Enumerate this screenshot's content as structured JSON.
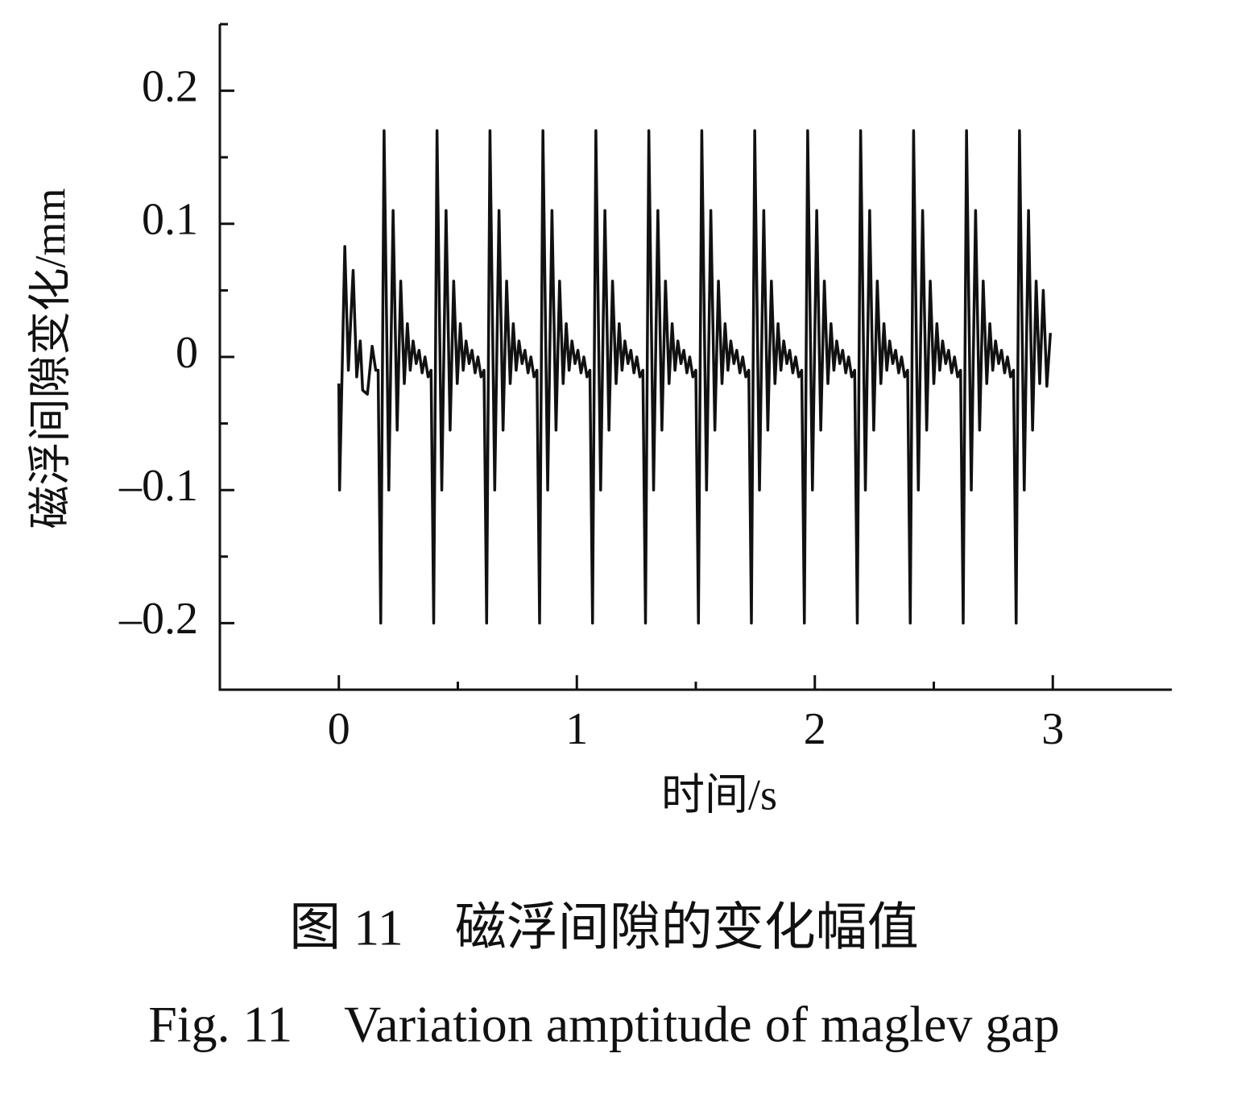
{
  "chart_data": {
    "type": "line",
    "caption_cn": "图 11　磁浮间隙的变化幅值",
    "caption_en": "Fig. 11　Variation amptitude of maglev gap",
    "xlabel": "时间/s",
    "ylabel": "磁浮间隙变化/mm",
    "color": "#111111",
    "xlim": [
      -0.5,
      3.5
    ],
    "ylim": [
      -0.25,
      0.25
    ],
    "xticks": [
      0,
      1,
      2,
      3
    ],
    "xminorticks": [
      0.5,
      1.5,
      2.5
    ],
    "yticks": [
      {
        "value": -0.2,
        "label": "–0.2"
      },
      {
        "value": -0.1,
        "label": "–0.1"
      },
      0,
      0.1,
      0.2
    ],
    "yminorticks": [
      -0.15,
      -0.05,
      0.05,
      0.15,
      0.25
    ],
    "x": [
      0,
      0.003,
      0.025,
      0.04,
      0.06,
      0.075,
      0.09,
      0.1,
      0.12,
      0.14,
      0.155,
      0.165,
      0.176,
      0.19,
      0.21,
      0.228,
      0.245,
      0.26,
      0.275,
      0.288,
      0.3,
      0.312,
      0.325,
      0.337,
      0.35,
      0.362,
      0.375,
      0.3875,
      0.3985,
      0.4125,
      0.4325,
      0.4505,
      0.4675,
      0.4825,
      0.4975,
      0.5105,
      0.5225,
      0.5345,
      0.5475,
      0.5595,
      0.5725,
      0.5845,
      0.5975,
      0.61,
      0.621,
      0.635,
      0.655,
      0.673,
      0.69,
      0.705,
      0.72,
      0.733,
      0.745,
      0.757,
      0.77,
      0.782,
      0.795,
      0.807,
      0.82,
      0.8325,
      0.8435,
      0.8575,
      0.8775,
      0.8955,
      0.9125,
      0.9275,
      0.9425,
      0.9555,
      0.9675,
      0.9795,
      0.9925,
      1.0045,
      1.0175,
      1.0295,
      1.0425,
      1.055,
      1.066,
      1.08,
      1.1,
      1.118,
      1.135,
      1.15,
      1.165,
      1.178,
      1.19,
      1.202,
      1.215,
      1.227,
      1.24,
      1.252,
      1.265,
      1.2775,
      1.2885,
      1.3025,
      1.3225,
      1.3405,
      1.3575,
      1.3725,
      1.3875,
      1.4005,
      1.4125,
      1.4245,
      1.4375,
      1.4495,
      1.4625,
      1.4745,
      1.4875,
      1.5,
      1.511,
      1.525,
      1.545,
      1.563,
      1.58,
      1.595,
      1.61,
      1.623,
      1.635,
      1.647,
      1.66,
      1.672,
      1.685,
      1.697,
      1.71,
      1.7225,
      1.7335,
      1.7475,
      1.7675,
      1.7855,
      1.8025,
      1.8175,
      1.8325,
      1.8455,
      1.8575,
      1.8695,
      1.8825,
      1.8945,
      1.9075,
      1.9195,
      1.9325,
      1.945,
      1.956,
      1.97,
      1.99,
      2.008,
      2.025,
      2.04,
      2.055,
      2.068,
      2.08,
      2.092,
      2.105,
      2.117,
      2.13,
      2.142,
      2.155,
      2.1675,
      2.1785,
      2.1925,
      2.2125,
      2.2305,
      2.2475,
      2.2625,
      2.2775,
      2.2905,
      2.3025,
      2.3145,
      2.3275,
      2.3395,
      2.3525,
      2.3645,
      2.3775,
      2.39,
      2.401,
      2.415,
      2.435,
      2.453,
      2.47,
      2.485,
      2.5,
      2.513,
      2.525,
      2.537,
      2.55,
      2.562,
      2.575,
      2.587,
      2.6,
      2.6125,
      2.6235,
      2.6375,
      2.6575,
      2.6755,
      2.6925,
      2.7075,
      2.7225,
      2.7355,
      2.7475,
      2.7595,
      2.7725,
      2.7845,
      2.7975,
      2.8095,
      2.8225,
      2.835,
      2.846,
      2.86,
      2.88,
      2.898,
      2.915,
      2.93,
      2.945,
      2.96,
      2.975,
      2.99
    ],
    "values": [
      -0.02,
      -0.1,
      0.083,
      -0.01,
      0.065,
      -0.015,
      0.012,
      -0.025,
      -0.028,
      0.008,
      -0.01,
      -0.01,
      -0.2,
      0.17,
      -0.1,
      0.11,
      -0.055,
      0.057,
      -0.02,
      0.025,
      -0.01,
      0.012,
      -0.005,
      0.005,
      -0.012,
      0.0,
      -0.015,
      -0.01,
      -0.2,
      0.17,
      -0.1,
      0.11,
      -0.055,
      0.057,
      -0.02,
      0.025,
      -0.01,
      0.012,
      -0.005,
      0.005,
      -0.012,
      0.0,
      -0.015,
      -0.01,
      -0.2,
      0.17,
      -0.1,
      0.11,
      -0.055,
      0.057,
      -0.02,
      0.025,
      -0.01,
      0.012,
      -0.005,
      0.005,
      -0.012,
      0.0,
      -0.015,
      -0.01,
      -0.2,
      0.17,
      -0.1,
      0.11,
      -0.055,
      0.057,
      -0.02,
      0.025,
      -0.01,
      0.012,
      -0.005,
      0.005,
      -0.012,
      0.0,
      -0.015,
      -0.01,
      -0.2,
      0.17,
      -0.1,
      0.11,
      -0.055,
      0.057,
      -0.02,
      0.025,
      -0.01,
      0.012,
      -0.005,
      0.005,
      -0.012,
      0.0,
      -0.015,
      -0.01,
      -0.2,
      0.17,
      -0.1,
      0.11,
      -0.055,
      0.057,
      -0.02,
      0.025,
      -0.01,
      0.012,
      -0.005,
      0.005,
      -0.012,
      0.0,
      -0.015,
      -0.01,
      -0.2,
      0.17,
      -0.1,
      0.11,
      -0.055,
      0.057,
      -0.02,
      0.025,
      -0.01,
      0.012,
      -0.005,
      0.005,
      -0.012,
      0.0,
      -0.015,
      -0.01,
      -0.2,
      0.17,
      -0.1,
      0.11,
      -0.055,
      0.057,
      -0.02,
      0.025,
      -0.01,
      0.012,
      -0.005,
      0.005,
      -0.012,
      0.0,
      -0.015,
      -0.01,
      -0.2,
      0.17,
      -0.1,
      0.11,
      -0.055,
      0.057,
      -0.02,
      0.025,
      -0.01,
      0.012,
      -0.005,
      0.005,
      -0.012,
      0.0,
      -0.015,
      -0.01,
      -0.2,
      0.17,
      -0.1,
      0.11,
      -0.055,
      0.057,
      -0.02,
      0.025,
      -0.01,
      0.012,
      -0.005,
      0.005,
      -0.012,
      0.0,
      -0.015,
      -0.01,
      -0.2,
      0.17,
      -0.1,
      0.11,
      -0.055,
      0.057,
      -0.02,
      0.025,
      -0.01,
      0.012,
      -0.005,
      0.005,
      -0.012,
      0.0,
      -0.015,
      -0.01,
      -0.2,
      0.17,
      -0.1,
      0.11,
      -0.055,
      0.057,
      -0.02,
      0.025,
      -0.01,
      0.012,
      -0.005,
      0.005,
      -0.012,
      0.0,
      -0.015,
      -0.01,
      -0.2,
      0.17,
      -0.1,
      0.11,
      -0.055,
      0.057,
      -0.02,
      0.05,
      -0.022,
      0.018
    ]
  }
}
